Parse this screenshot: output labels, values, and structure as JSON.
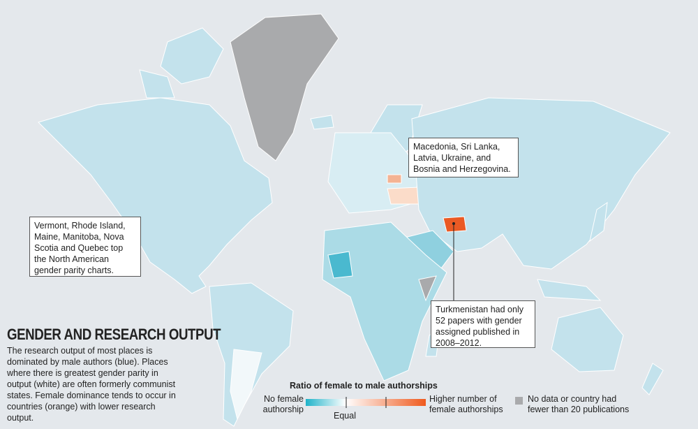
{
  "title": "GENDER AND RESEARCH OUTPUT",
  "description": "The research output of most places is dominated by male authors (blue). Places where there is greatest gender parity in output (white) are often formerly communist states. Female dominance tends to occur in countries (orange) with lower research output.",
  "annotations": [
    {
      "text": "Macedonia, Sri Lanka, Latvia, Ukraine, and Bosnia and Herzegovina."
    },
    {
      "text": "Vermont, Rhode Island, Maine, Manitoba, Nova Scotia and Quebec top the North American gender parity charts."
    },
    {
      "text": "Turkmenistan had only 52 papers with gender assigned published in 2008–2012."
    }
  ],
  "legend": {
    "title": "Ratio of female to male authorships",
    "low": "No female authorship",
    "mid": "Equal",
    "high": "Higher number of female authorships",
    "no_data": "No data or country had fewer than 20 publications"
  }
}
